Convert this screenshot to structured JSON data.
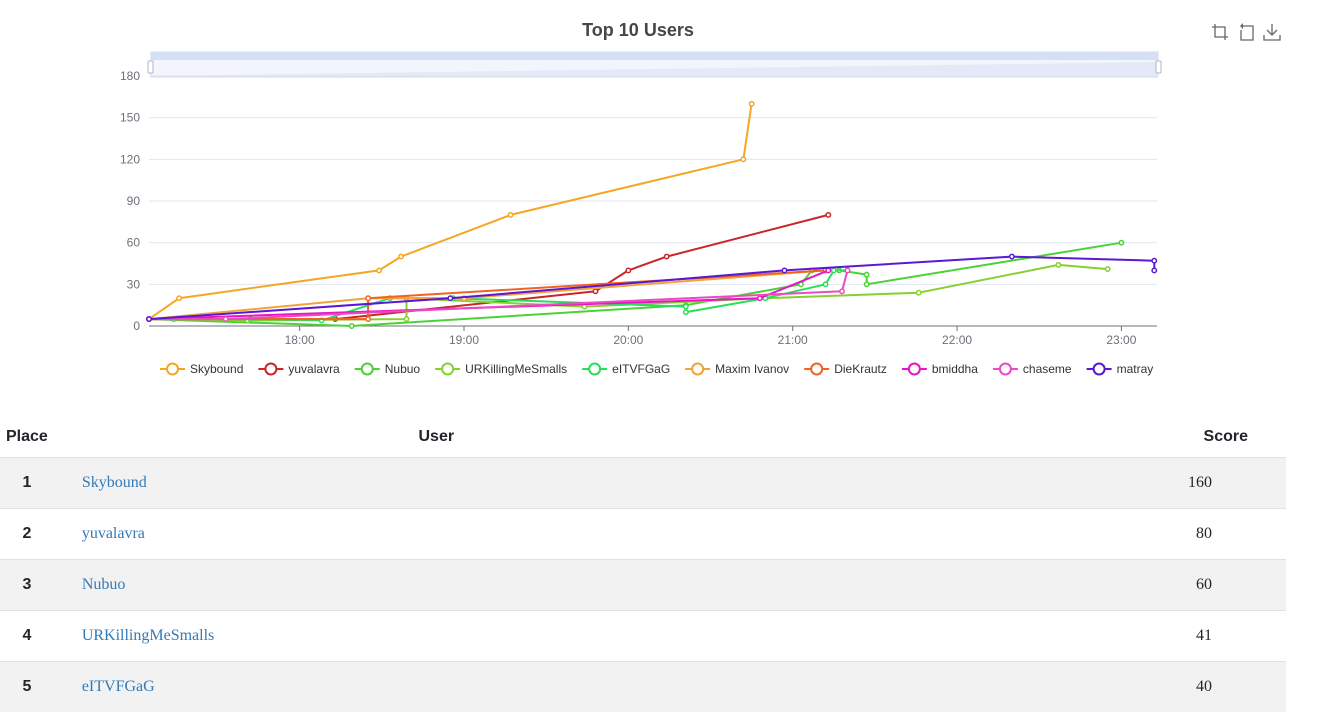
{
  "chart_data": {
    "type": "line",
    "title": "Top 10 Users",
    "ylim": [
      0,
      180
    ],
    "y_ticks": [
      "0",
      "30",
      "60",
      "90",
      "120",
      "150",
      "180"
    ],
    "x_ticks": [
      "18:00",
      "19:00",
      "20:00",
      "21:00",
      "22:00",
      "23:00"
    ],
    "xlim": [
      "17:05",
      "23:13"
    ],
    "grid": "horizontal",
    "legend_position": "bottom",
    "series": [
      {
        "name": "Skybound",
        "color": "#f5a623",
        "points": [
          [
            "17:05",
            5
          ],
          [
            "17:16",
            20
          ],
          [
            "18:29",
            40
          ],
          [
            "18:37",
            50
          ],
          [
            "19:17",
            80
          ],
          [
            "20:42",
            120
          ],
          [
            "20:45",
            160
          ]
        ]
      },
      {
        "name": "yuvalavra",
        "color": "#c9262a",
        "points": [
          [
            "17:05",
            5
          ],
          [
            "18:13",
            5
          ],
          [
            "19:48",
            25
          ],
          [
            "20:00",
            40
          ],
          [
            "20:14",
            50
          ],
          [
            "21:13",
            80
          ]
        ]
      },
      {
        "name": "Nubuo",
        "color": "#4cd137",
        "points": [
          [
            "17:05",
            5
          ],
          [
            "18:19",
            0
          ],
          [
            "20:21",
            15
          ],
          [
            "21:03",
            30
          ],
          [
            "21:07",
            40
          ],
          [
            "21:17",
            40
          ],
          [
            "21:27",
            37
          ],
          [
            "21:27",
            30
          ],
          [
            "23:00",
            60
          ]
        ]
      },
      {
        "name": "URKillingMeSmalls",
        "color": "#86d130",
        "points": [
          [
            "17:05",
            5
          ],
          [
            "17:41",
            4
          ],
          [
            "18:39",
            5
          ],
          [
            "18:39",
            20
          ],
          [
            "19:44",
            14
          ],
          [
            "20:50",
            20
          ],
          [
            "21:46",
            24
          ],
          [
            "22:37",
            44
          ],
          [
            "22:55",
            41
          ]
        ]
      },
      {
        "name": "eITVFGaG",
        "color": "#27e05a",
        "points": [
          [
            "17:05",
            5
          ],
          [
            "17:14",
            5
          ],
          [
            "17:42",
            5
          ],
          [
            "18:08",
            4
          ],
          [
            "18:33",
            20
          ],
          [
            "18:56",
            20
          ],
          [
            "20:21",
            14
          ],
          [
            "20:21",
            10
          ],
          [
            "20:50",
            20
          ],
          [
            "21:12",
            30
          ],
          [
            "21:15",
            40
          ],
          [
            "21:20",
            40
          ]
        ]
      },
      {
        "name": "Maxim Ivanov",
        "color": "#f2a33a",
        "points": [
          [
            "17:05",
            5
          ],
          [
            "18:25",
            20
          ],
          [
            "19:00",
            20
          ],
          [
            "21:12",
            40
          ]
        ]
      },
      {
        "name": "DieKrautz",
        "color": "#f26322",
        "points": [
          [
            "17:05",
            5
          ],
          [
            "18:25",
            5
          ],
          [
            "18:25",
            20
          ],
          [
            "21:12",
            40
          ]
        ]
      },
      {
        "name": "bmiddha",
        "color": "#e815c6",
        "points": [
          [
            "17:05",
            5
          ],
          [
            "20:48",
            20
          ],
          [
            "21:13",
            40
          ]
        ]
      },
      {
        "name": "chaseme",
        "color": "#ec49c2",
        "points": [
          [
            "17:05",
            5
          ],
          [
            "17:33",
            5
          ],
          [
            "21:18",
            25
          ],
          [
            "21:20",
            40
          ]
        ]
      },
      {
        "name": "matray",
        "color": "#5b17d6",
        "points": [
          [
            "17:05",
            5
          ],
          [
            "18:55",
            20
          ],
          [
            "20:57",
            40
          ],
          [
            "22:20",
            50
          ],
          [
            "23:12",
            47
          ],
          [
            "23:12",
            40
          ]
        ]
      }
    ]
  },
  "toolbox": {
    "zoom_icon": "crop-zoom-icon",
    "reset_icon": "restore-icon",
    "save_icon": "download-icon"
  },
  "table": {
    "headers": {
      "place": "Place",
      "user": "User",
      "score": "Score"
    },
    "rows": [
      {
        "place": "1",
        "user": "Skybound",
        "score": "160"
      },
      {
        "place": "2",
        "user": "yuvalavra",
        "score": "80"
      },
      {
        "place": "3",
        "user": "Nubuo",
        "score": "60"
      },
      {
        "place": "4",
        "user": "URKillingMeSmalls",
        "score": "41"
      },
      {
        "place": "5",
        "user": "eITVFGaG",
        "score": "40"
      }
    ]
  }
}
